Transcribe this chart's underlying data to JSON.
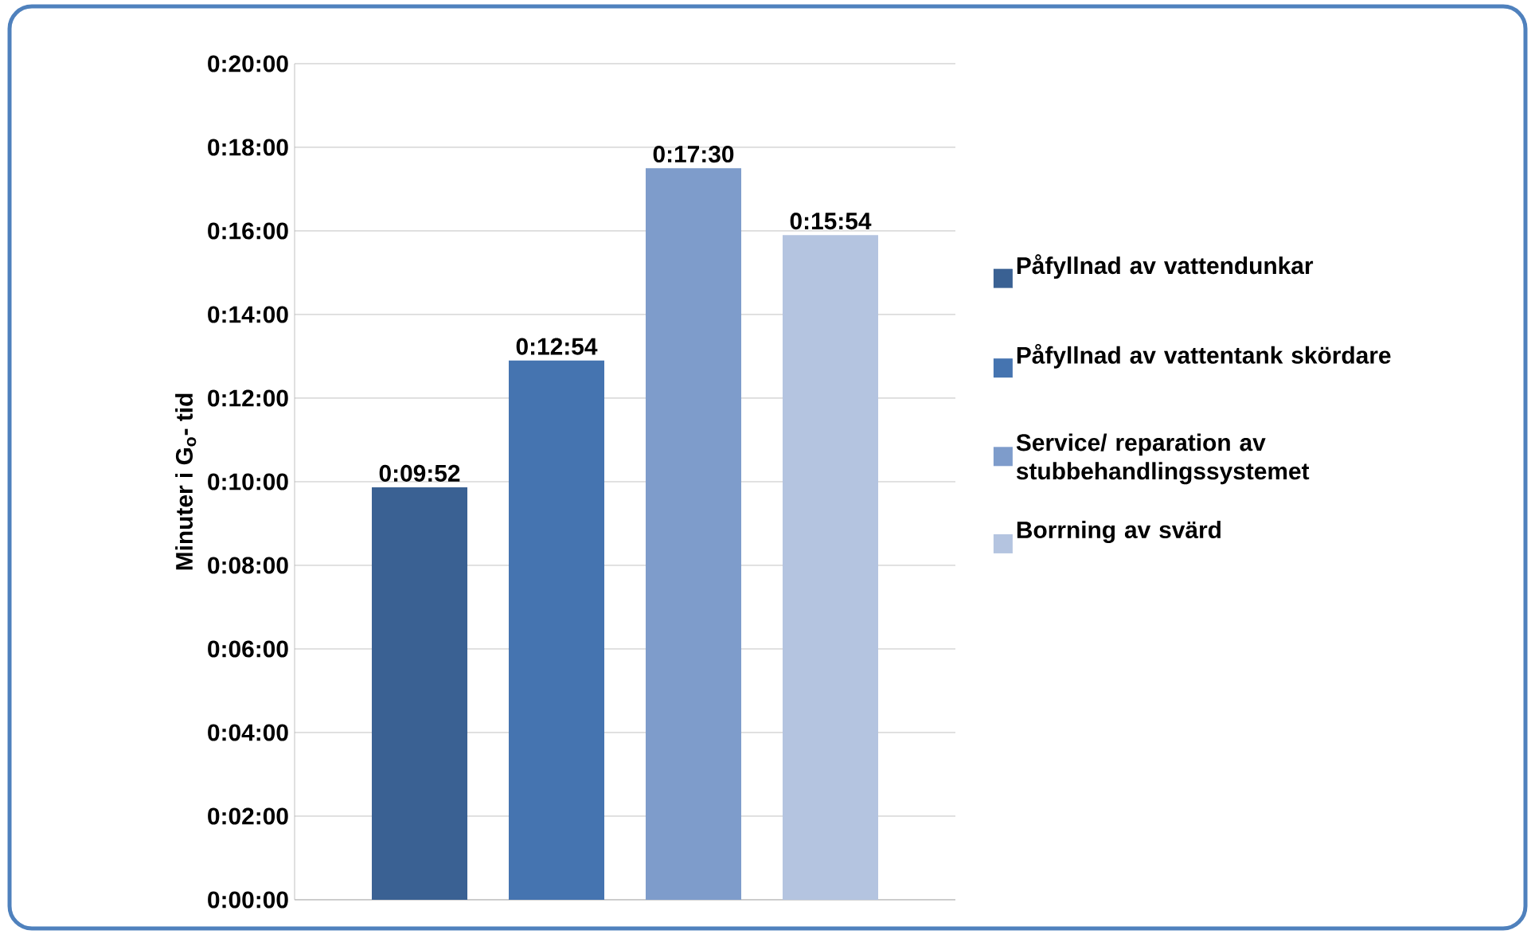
{
  "chart_data": {
    "type": "bar",
    "ylabel": "Minuter i G$_{o}$- tid",
    "categories": [
      null
    ],
    "series": [
      {
        "name": "Påfyllnad av vattendunkar",
        "color": "#3a6193",
        "values": [
          9.8667
        ],
        "value_labels": [
          "0:09:52"
        ]
      },
      {
        "name": "Påfyllnad av vattentank skördare",
        "color": "#4574b0",
        "values": [
          12.9
        ],
        "value_labels": [
          "0:12:54"
        ]
      },
      {
        "name": "Service/ reparation av stubbehandlingssystemet",
        "color": "#7e9ccb",
        "values": [
          17.5
        ],
        "value_labels": [
          "0:17:30"
        ]
      },
      {
        "name": "Borrning av svärd",
        "color": "#b4c4e0",
        "values": [
          15.9
        ],
        "value_labels": [
          "0:15:54"
        ]
      }
    ],
    "ylim": [
      0,
      20
    ],
    "yticks": [
      {
        "value": 0,
        "label": "0:00:00"
      },
      {
        "value": 2,
        "label": "0:02:00"
      },
      {
        "value": 4,
        "label": "0:04:00"
      },
      {
        "value": 6,
        "label": "0:06:00"
      },
      {
        "value": 8,
        "label": "0:08:00"
      },
      {
        "value": 10,
        "label": "0:10:00"
      },
      {
        "value": 12,
        "label": "0:12:00"
      },
      {
        "value": 14,
        "label": "0:14:00"
      },
      {
        "value": 16,
        "label": "0:16:00"
      },
      {
        "value": 18,
        "label": "0:18:00"
      },
      {
        "value": 20,
        "label": "0:20:00"
      }
    ],
    "grid": "y",
    "legend": "right"
  }
}
